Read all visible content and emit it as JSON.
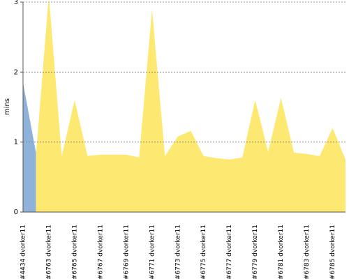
{
  "chart_data": {
    "type": "area",
    "y_label": "mins",
    "categories": [
      "#4434 dvorker11",
      null,
      "#6763 dvorker11",
      null,
      "#6765 dvorker11",
      null,
      "#6767 dvorker11",
      null,
      "#6769 dvorker11",
      null,
      "#6771 dvorker11",
      null,
      "#6773 dvorker11",
      null,
      "#6775 dvorker11",
      null,
      "#6777 dvorker11",
      null,
      "#6779 dvorker11",
      null,
      "#6781 dvorker11",
      null,
      "#6783 dvorker11",
      null,
      "#6785 dvorker11",
      null
    ],
    "series": [
      {
        "color": "#8eb2d9",
        "values": [
          1.85,
          0.85,
          null,
          null,
          null,
          null,
          null,
          null,
          null,
          null,
          null,
          null,
          null,
          null,
          null,
          null,
          null,
          null,
          null,
          null,
          null,
          null,
          null,
          null,
          null,
          null
        ]
      },
      {
        "color": "#fde971",
        "values": [
          null,
          0.8,
          3.1,
          0.8,
          1.6,
          0.8,
          0.82,
          0.82,
          0.82,
          0.78,
          2.9,
          0.8,
          1.08,
          1.16,
          0.8,
          0.77,
          0.75,
          0.78,
          1.6,
          0.86,
          1.63,
          0.85,
          0.83,
          0.8,
          1.2,
          0.75
        ]
      }
    ],
    "ylim": [
      0,
      3
    ],
    "yticks": [
      0,
      1,
      2,
      3
    ],
    "grid": true
  }
}
